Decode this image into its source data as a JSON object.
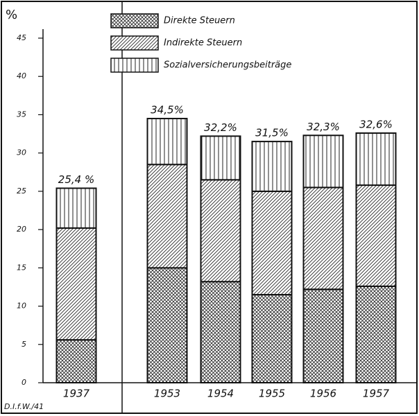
{
  "chart_data": {
    "type": "stacked_bar",
    "y_label": "%",
    "source": "D.I.f.W./41",
    "categories": [
      "1937",
      "1953",
      "1954",
      "1955",
      "1956",
      "1957"
    ],
    "series": [
      {
        "name": "Direkte Steuern",
        "pattern": "crosshatch",
        "values": [
          5.6,
          15.0,
          13.2,
          11.5,
          12.2,
          12.6
        ]
      },
      {
        "name": "Indirekte Steuern",
        "pattern": "diagonal",
        "values": [
          14.6,
          13.5,
          13.3,
          13.5,
          13.3,
          13.2
        ]
      },
      {
        "name": "Sozialversicherungsbeiträge",
        "pattern": "vertical",
        "values": [
          5.2,
          6.0,
          5.7,
          6.5,
          6.8,
          6.8
        ]
      }
    ],
    "totals": [
      25.4,
      34.5,
      32.2,
      31.5,
      32.3,
      32.6
    ],
    "total_labels": [
      "25,4 %",
      "34,5%",
      "32,2%",
      "31,5%",
      "32,3%",
      "32,6%"
    ],
    "ylim": [
      0,
      45
    ],
    "yticks": [
      0,
      5,
      10,
      15,
      20,
      25,
      30,
      35,
      40,
      45
    ]
  }
}
